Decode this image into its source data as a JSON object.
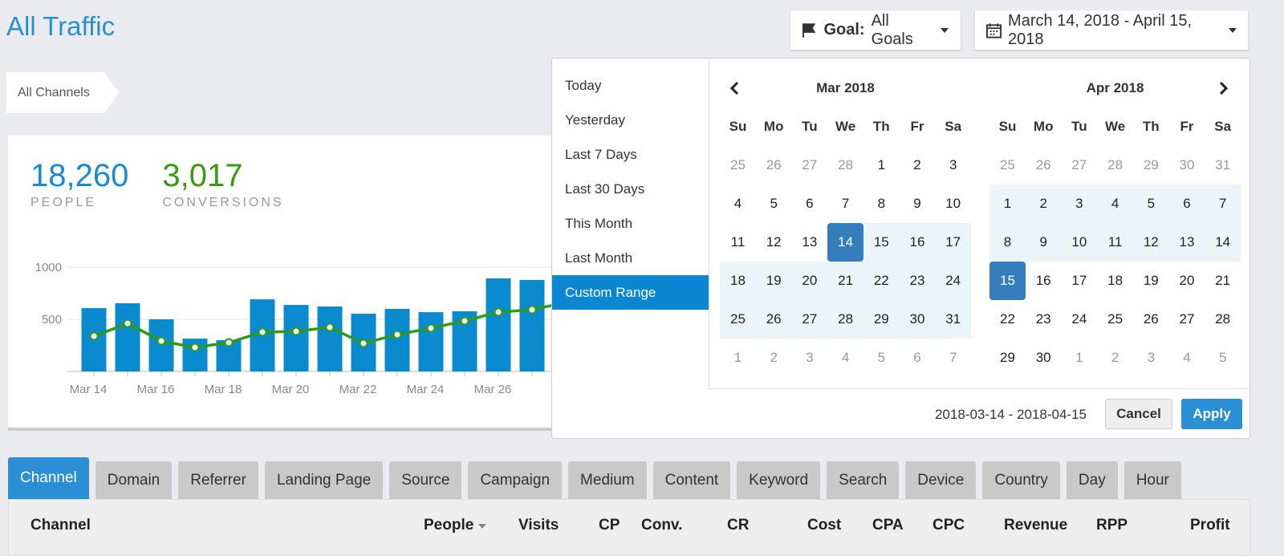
{
  "header": {
    "title": "All Traffic",
    "goal_label": "Goal:",
    "goal_value": "All Goals",
    "date_range": "March 14, 2018 - April 15, 2018"
  },
  "breadcrumb": "All Channels",
  "stats": [
    {
      "value": "18,260",
      "label": "PEOPLE",
      "color": "#1a8ad4"
    },
    {
      "value": "3,017",
      "label": "CONVERSIONS",
      "color": "#3a9a13"
    }
  ],
  "chart_data": {
    "type": "bar",
    "categories": [
      "Mar 14",
      null,
      "Mar 16",
      null,
      "Mar 18",
      null,
      "Mar 20",
      null,
      "Mar 22",
      null,
      "Mar 24",
      null,
      "Mar 26",
      null
    ],
    "series": [
      {
        "type": "bar",
        "color": "#0a8bcf",
        "values": [
          607,
          654,
          500,
          315,
          300,
          692,
          638,
          623,
          554,
          600,
          569,
          577,
          892,
          877
        ]
      },
      {
        "type": "line",
        "color": "#2e9a1c",
        "values": [
          338,
          461,
          292,
          231,
          277,
          377,
          385,
          423,
          269,
          354,
          415,
          485,
          569,
          592
        ]
      }
    ],
    "ylim": [
      0,
      1000
    ],
    "yticks": [
      500,
      1000
    ],
    "grid": true
  },
  "picker": {
    "ranges": [
      "Today",
      "Yesterday",
      "Last 7 Days",
      "Last 30 Days",
      "This Month",
      "Last Month",
      "Custom Range"
    ],
    "active_range": 6,
    "calendars": [
      {
        "title": "Mar 2018",
        "weekdays": [
          "Su",
          "Mo",
          "Tu",
          "We",
          "Th",
          "Fr",
          "Sa"
        ],
        "range": [
          14,
          31
        ],
        "highlight": 14,
        "weeks": [
          [
            25,
            26,
            27,
            28,
            1,
            2,
            3
          ],
          [
            4,
            5,
            6,
            7,
            8,
            9,
            10
          ],
          [
            11,
            12,
            13,
            14,
            15,
            16,
            17
          ],
          [
            18,
            19,
            20,
            21,
            22,
            23,
            24
          ],
          [
            25,
            26,
            27,
            28,
            29,
            30,
            31
          ],
          [
            1,
            2,
            3,
            4,
            5,
            6,
            7
          ]
        ]
      },
      {
        "title": "Apr 2018",
        "weekdays": [
          "Su",
          "Mo",
          "Tu",
          "We",
          "Th",
          "Fr",
          "Sa"
        ],
        "range": [
          1,
          15
        ],
        "highlight": 15,
        "weeks": [
          [
            25,
            26,
            27,
            28,
            29,
            30,
            31
          ],
          [
            1,
            2,
            3,
            4,
            5,
            6,
            7
          ],
          [
            8,
            9,
            10,
            11,
            12,
            13,
            14
          ],
          [
            15,
            16,
            17,
            18,
            19,
            20,
            21
          ],
          [
            22,
            23,
            24,
            25,
            26,
            27,
            28
          ],
          [
            29,
            30,
            1,
            2,
            3,
            4,
            5
          ]
        ]
      }
    ],
    "selection": "2018-03-14 - 2018-04-15",
    "cancel": "Cancel",
    "apply": "Apply"
  },
  "tabs": [
    "Channel",
    "Domain",
    "Referrer",
    "Landing Page",
    "Source",
    "Campaign",
    "Medium",
    "Content",
    "Keyword",
    "Search",
    "Device",
    "Country",
    "Day",
    "Hour"
  ],
  "active_tab": 0,
  "table": {
    "columns": [
      "Channel",
      "People",
      "Visits",
      "CP",
      "Conv.",
      "CR",
      "Cost",
      "CPA",
      "CPC",
      "Revenue",
      "RPP",
      "Profit"
    ]
  }
}
